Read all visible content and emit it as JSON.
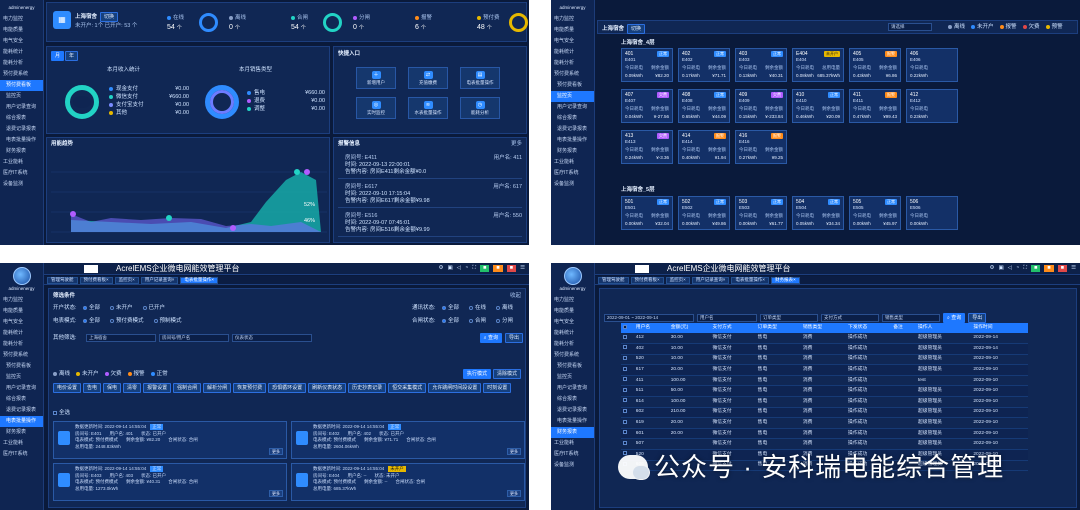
{
  "colors": {
    "accent": "#1e78ff",
    "panel": "#102754",
    "bg": "#0a1a3b",
    "teal": "#22d3c5",
    "purple": "#b05cff",
    "yellow": "#e6b800"
  },
  "q1": {
    "sidebar": {
      "user": "adminenergy",
      "items": [
        "电力监控",
        "电能质量",
        "电气安全",
        "能耗统计",
        "能耗分析",
        "预付费系统",
        "预付费看板",
        "监控页",
        "用户记录查询",
        "综合报表",
        "退费记录报表",
        "电表批量操作",
        "财务报表",
        "工业能耗",
        "医疗IT系统",
        "设备监测"
      ],
      "active_index": 6
    },
    "site": {
      "name": "上海宿舍",
      "switch": "切换",
      "sub": "未开户: 1个  已开户: 53 个"
    },
    "stats": [
      {
        "label": "在线",
        "value": "54",
        "unit": "个",
        "color": "#2f8cff"
      },
      {
        "label": "离线",
        "value": "0",
        "unit": "个",
        "color": "#8aa0c8"
      },
      {
        "label": "合闸",
        "value": "54",
        "unit": "个",
        "color": "#22d3c5"
      },
      {
        "label": "分闸",
        "value": "0",
        "unit": "个",
        "color": "#b05cff"
      },
      {
        "label": "报警",
        "value": "6",
        "unit": "个",
        "color": "#ff8c1a"
      },
      {
        "label": "预付费",
        "value": "48",
        "unit": "个",
        "color": "#e6b800"
      }
    ],
    "toggle": {
      "month": "月",
      "year": "年"
    },
    "income": {
      "title": "本月收入统计",
      "rows": [
        {
          "label": "现金支付",
          "value": "¥0.00",
          "color": "#2f8cff"
        },
        {
          "label": "微信支付",
          "value": "¥660.00",
          "color": "#22d3c5"
        },
        {
          "label": "支付宝支付",
          "value": "¥0.00",
          "color": "#7a8cff"
        },
        {
          "label": "其他",
          "value": "¥0.00",
          "color": "#e6b800"
        }
      ]
    },
    "saletype": {
      "title": "本月销售类型",
      "rows": [
        {
          "label": "售电",
          "value": "¥660.00",
          "color": "#2f8cff"
        },
        {
          "label": "退费",
          "value": "¥0.00",
          "color": "#b05cff"
        },
        {
          "label": "调整",
          "value": "¥0.00",
          "color": "#22d3c5"
        }
      ]
    },
    "trend": {
      "title": "用能趋势",
      "labels": [
        "52%",
        "46%"
      ]
    },
    "quick": {
      "title": "快捷入口",
      "items": [
        "新增用户",
        "充值缴费",
        "电表批量操作",
        "实时监控",
        "水表批量操作",
        "能耗分析"
      ]
    },
    "alarm": {
      "title": "报警信息",
      "more": "更多",
      "items": [
        {
          "room": "房间号: E411",
          "user": "用户名: 411",
          "time": "时间: 2022-09-13 22:00:01",
          "detail": "告警内容: 房间E411剩余金额¥0.0"
        },
        {
          "room": "房间号: E617",
          "user": "用户名: 617",
          "time": "时间: 2022-09-10 17:15:04",
          "detail": "告警内容: 房间E617剩余金额¥9.98"
        },
        {
          "room": "房间号: E516",
          "user": "用户名: 550",
          "time": "时间: 2022-09-07 07:45:01",
          "detail": "告警内容: 房间E516剩余金额¥9.99"
        }
      ]
    }
  },
  "q2": {
    "sidebar": {
      "user": "adminenergy",
      "items": [
        "电力监控",
        "电能质量",
        "电气安全",
        "能耗统计",
        "能耗分析",
        "预付费系统",
        "预付费看板",
        "监控页",
        "用户记录查询",
        "综合报表",
        "退费记录报表",
        "电表批量操作",
        "财务报表",
        "工业能耗",
        "医疗IT系统",
        "设备监测"
      ],
      "active_index": 7
    },
    "site": {
      "name": "上海宿舍",
      "switch": "切换"
    },
    "filter": {
      "placeholder": "请选择"
    },
    "legend": [
      {
        "label": "离线",
        "color": "#8aa0c8"
      },
      {
        "label": "未开户",
        "color": "#2f8cff"
      },
      {
        "label": "报警",
        "color": "#ff8c1a"
      },
      {
        "label": "欠费",
        "color": "#e04848"
      },
      {
        "label": "预警",
        "color": "#e6b800"
      }
    ],
    "floor4": {
      "title": "上海宿舍_4层"
    },
    "floor5": {
      "title": "上海宿舍_5层"
    },
    "rooms4": [
      {
        "no": "401",
        "code": "E401",
        "badge": "正常",
        "bc": "bg-blue",
        "k1": "今日耗电",
        "k2": "剩余金额",
        "v1": "0.09kWh",
        "v2": "¥82.20"
      },
      {
        "no": "402",
        "code": "E402",
        "badge": "正常",
        "bc": "bg-blue",
        "k1": "今日耗电",
        "k2": "剩余金额",
        "v1": "0.17kWh",
        "v2": "¥71.71"
      },
      {
        "no": "403",
        "code": "E403",
        "badge": "正常",
        "bc": "bg-blue",
        "k1": "今日耗电",
        "k2": "剩余金额",
        "v1": "0.13kWh",
        "v2": "¥40.31"
      },
      {
        "no": "E404",
        "code": "E404",
        "badge": "未开户",
        "bc": "bg-yellow",
        "k1": "今日耗电",
        "k2": "总用电量",
        "v1": "0.08kWh",
        "v2": "685.37kWh"
      },
      {
        "no": "405",
        "code": "E405",
        "badge": "报警",
        "bc": "bg-orange",
        "k1": "今日耗电",
        "k2": "剩余金额",
        "v1": "0.43kWh",
        "v2": "¥6.86"
      },
      {
        "no": "406",
        "code": "E406",
        "badge": "",
        "bc": "",
        "k1": "今日耗电",
        "k2": "",
        "v1": "0.22kWh",
        "v2": ""
      },
      {
        "no": "407",
        "code": "E407",
        "badge": "欠费",
        "bc": "bg-purple",
        "k1": "今日耗电",
        "k2": "剩余金额",
        "v1": "0.04kWh",
        "v2": "¥-27.56"
      },
      {
        "no": "408",
        "code": "E408",
        "badge": "正常",
        "bc": "bg-blue",
        "k1": "今日耗电",
        "k2": "剩余金额",
        "v1": "0.65kWh",
        "v2": "¥44.09"
      },
      {
        "no": "409",
        "code": "E409",
        "badge": "欠费",
        "bc": "bg-purple",
        "k1": "今日耗电",
        "k2": "剩余金额",
        "v1": "0.15kWh",
        "v2": "¥-233.84"
      },
      {
        "no": "410",
        "code": "E410",
        "badge": "正常",
        "bc": "bg-blue",
        "k1": "今日耗电",
        "k2": "剩余金额",
        "v1": "0.46kWh",
        "v2": "¥20.09"
      },
      {
        "no": "411",
        "code": "E411",
        "badge": "报警",
        "bc": "bg-orange",
        "k1": "今日耗电",
        "k2": "剩余金额",
        "v1": "0.47kWh",
        "v2": "¥99.43"
      },
      {
        "no": "412",
        "code": "E412",
        "badge": "",
        "bc": "",
        "k1": "今日耗电",
        "k2": "",
        "v1": "0.23kWh",
        "v2": ""
      },
      {
        "no": "413",
        "code": "E413",
        "badge": "欠费",
        "bc": "bg-purple",
        "k1": "今日耗电",
        "k2": "剩余金额",
        "v1": "0.24kWh",
        "v2": "¥-3.36"
      },
      {
        "no": "414",
        "code": "E414",
        "badge": "报警",
        "bc": "bg-orange",
        "k1": "今日耗电",
        "k2": "剩余金额",
        "v1": "0.40kWh",
        "v2": "¥1.94"
      },
      {
        "no": "416",
        "code": "E416",
        "badge": "报警",
        "bc": "bg-orange",
        "k1": "今日耗电",
        "k2": "剩余金额",
        "v1": "0.27kWh",
        "v2": "¥9.25"
      }
    ],
    "rooms5": [
      {
        "no": "501",
        "code": "E501",
        "badge": "正常",
        "bc": "bg-blue",
        "k1": "今日耗电",
        "k2": "剩余金额",
        "v1": "0.00kWh",
        "v2": "¥32.04"
      },
      {
        "no": "502",
        "code": "E502",
        "badge": "正常",
        "bc": "bg-blue",
        "k1": "今日耗电",
        "k2": "剩余金额",
        "v1": "0.00kWh",
        "v2": "¥49.86"
      },
      {
        "no": "503",
        "code": "E503",
        "badge": "正常",
        "bc": "bg-blue",
        "k1": "今日耗电",
        "k2": "剩余金额",
        "v1": "0.00kWh",
        "v2": "¥61.77"
      },
      {
        "no": "504",
        "code": "E504",
        "badge": "正常",
        "bc": "bg-blue",
        "k1": "今日耗电",
        "k2": "剩余金额",
        "v1": "0.05kWh",
        "v2": "¥34.34"
      },
      {
        "no": "505",
        "code": "E505",
        "badge": "正常",
        "bc": "bg-blue",
        "k1": "今日耗电",
        "k2": "剩余金额",
        "v1": "0.00kWh",
        "v2": "¥45.97"
      },
      {
        "no": "506",
        "code": "E506",
        "badge": "",
        "bc": "",
        "k1": "今日耗电",
        "k2": "",
        "v1": "0.00kWh",
        "v2": ""
      }
    ]
  },
  "q3": {
    "app_title": "AcrelEMS企业微电网能效管理平台",
    "sidebar": {
      "user": "adminenergy",
      "items": [
        "电力监控",
        "电能质量",
        "电气安全",
        "能耗统计",
        "能耗分析",
        "预付费系统",
        "预付费看板",
        "监控页",
        "用户记录查询",
        "综合报表",
        "退费记录报表",
        "电表批量操作",
        "财务报表",
        "工业能耗",
        "医疗IT系统"
      ],
      "active_index": 11
    },
    "tabs": [
      "管理驾驶舱",
      "预付费看板",
      "监控页",
      "用户记录查询",
      "电表批量操作"
    ],
    "tab_active": 4,
    "filter": {
      "title": "筛选条件",
      "collapse": "收起",
      "r1": {
        "label": "开户状态:",
        "opts": [
          "全部",
          "未开户",
          "已开户"
        ],
        "label2": "通讯状态:",
        "opts2": [
          "全部",
          "在线",
          "离线"
        ]
      },
      "r2": {
        "label": "电表模式:",
        "opts": [
          "全部",
          "预付费模式",
          "预制模式"
        ],
        "label2": "合闸状态:",
        "opts2": [
          "全部",
          "合闸",
          "分闸"
        ]
      },
      "r3": {
        "label": "其他筛选:",
        "site": "上海宿舍",
        "ph1": "房间号/用户名",
        "ph2": "仪表状态",
        "query": "查询",
        "export": "导出"
      }
    },
    "states": [
      "离线",
      "未开户",
      "欠费",
      "报警",
      "正常"
    ],
    "modes": {
      "exec": "执行模式",
      "clear": "清除模式"
    },
    "actions": [
      "电价设置",
      "告电",
      "保电",
      "清零",
      "报警设置",
      "强制合闸",
      "解析分闸",
      "恢复预付费",
      "恐惧循环设置",
      "刷新仪表状态",
      "历史抄表记录",
      "恒交采集模式",
      "允许跳闸时间段设置",
      "时刻设置"
    ],
    "selectall": "全选",
    "meters": [
      {
        "ts": "数据更新时间: 2022-09-14 14:55:04",
        "badge": "正常",
        "bc": "bg-blue",
        "a1": "房间号: E401",
        "a2": "用户名: 401",
        "a3": "状态: 已开户",
        "b1": "电表模式: 预付费模式",
        "b2": "剩余金额: ¥82.20",
        "b3": "合闸状态: 合闸",
        "c1": "总用电量: 2448.83kWh",
        "more": "更多"
      },
      {
        "ts": "数据更新时间: 2022-09-14 14:55:04",
        "badge": "正常",
        "bc": "bg-blue",
        "a1": "房间号: E402",
        "a2": "用户名: 402",
        "a3": "状态: 已开户",
        "b1": "电表模式: 预付费模式",
        "b2": "剩余金额: ¥71.71",
        "b3": "合闸状态: 合闸",
        "c1": "总用电量: 2604.06kWh",
        "more": "更多"
      },
      {
        "ts": "数据更新时间: 2022-09-14 14:55:04",
        "badge": "正常",
        "bc": "bg-blue",
        "a1": "房间号: E403",
        "a2": "用户名: 403",
        "a3": "状态: 已开户",
        "b1": "电表模式: 预付费模式",
        "b2": "剩余金额: ¥40.31",
        "b3": "合闸状态: 合闸",
        "c1": "总用电量: 1273.0kWh",
        "more": "更多"
      },
      {
        "ts": "数据更新时间: 2022-09-14 14:55:04",
        "badge": "未开户",
        "bc": "bg-yellow",
        "a1": "房间号: E404",
        "a2": "用户名: --",
        "a3": "状态: 未开户",
        "b1": "电表模式: 预付费模式",
        "b2": "剩余金额: --",
        "b3": "合闸状态: 合闸",
        "c1": "总用电量: 685.37kWh",
        "more": "更多"
      }
    ]
  },
  "q4": {
    "app_title": "AcrelEMS企业微电网能效管理平台",
    "sidebar": {
      "user": "adminenergy",
      "items": [
        "电力监控",
        "电能质量",
        "电气安全",
        "能耗统计",
        "能耗分析",
        "预付费系统",
        "预付费看板",
        "监控页",
        "用户记录查询",
        "综合报表",
        "退费记录报表",
        "电表批量操作",
        "财务报表",
        "工业能耗",
        "医疗IT系统",
        "设备监测"
      ],
      "active_index": 12
    },
    "tabs": [
      "管理驾驶舱",
      "预付费看板",
      "监控页",
      "用户记录查询",
      "电表批量操作",
      "财务报表"
    ],
    "tab_active": 5,
    "filter": {
      "date": "2022-09-01 ~ 2022-09-14",
      "user_ph": "用户名",
      "order_ph": "订单类型",
      "pay_ph": "支付方式",
      "sale_ph": "销售类型",
      "query": "查询",
      "export": "导出"
    },
    "columns": [
      "",
      "用户名",
      "金额(元)",
      "支付方式",
      "订单类型",
      "销售类型",
      "下发状态",
      "备注",
      "操作人",
      "操作时间"
    ],
    "rows": [
      [
        "412",
        "30.00",
        "微信支付",
        "售电",
        "消费",
        "操作成功",
        "",
        "超级管理员",
        "2022-09-14"
      ],
      [
        "402",
        "10.00",
        "微信支付",
        "售电",
        "消费",
        "操作成功",
        "",
        "超级管理员",
        "2022-09-14"
      ],
      [
        "520",
        "10.00",
        "微信支付",
        "售电",
        "消费",
        "操作成功",
        "",
        "超级管理员",
        "2022-09-10"
      ],
      [
        "617",
        "20.00",
        "微信支付",
        "售电",
        "消费",
        "操作成功",
        "",
        "超级管理员",
        "2022-09-10"
      ],
      [
        "411",
        "100.00",
        "微信支付",
        "售电",
        "消费",
        "操作成功",
        "",
        "test",
        "2022-09-10"
      ],
      [
        "511",
        "50.00",
        "微信支付",
        "售电",
        "消费",
        "操作成功",
        "",
        "超级管理员",
        "2022-09-10"
      ],
      [
        "614",
        "100.00",
        "微信支付",
        "售电",
        "消费",
        "操作成功",
        "",
        "超级管理员",
        "2022-09-10"
      ],
      [
        "602",
        "210.00",
        "微信支付",
        "售电",
        "消费",
        "操作成功",
        "",
        "超级管理员",
        "2022-09-10"
      ],
      [
        "619",
        "20.00",
        "微信支付",
        "售电",
        "消费",
        "操作成功",
        "",
        "超级管理员",
        "2022-09-10"
      ],
      [
        "601",
        "20.00",
        "微信支付",
        "售电",
        "消费",
        "操作成功",
        "",
        "超级管理员",
        "2022-09-10"
      ],
      [
        "507",
        "",
        "微信支付",
        "售电",
        "消费",
        "操作成功",
        "",
        "超级管理员",
        "2022-09-10"
      ],
      [
        "520",
        "",
        "微信支付",
        "售电",
        "消费",
        "操作成功",
        "",
        "超级管理员",
        "2022-09-10"
      ],
      [
        "606",
        "",
        "微信支付",
        "售电",
        "消费",
        "操作成功",
        "",
        "超级管理员",
        "2022-09-10"
      ]
    ]
  },
  "watermark": {
    "text": "公众号 · 安科瑞电能综合管理"
  }
}
